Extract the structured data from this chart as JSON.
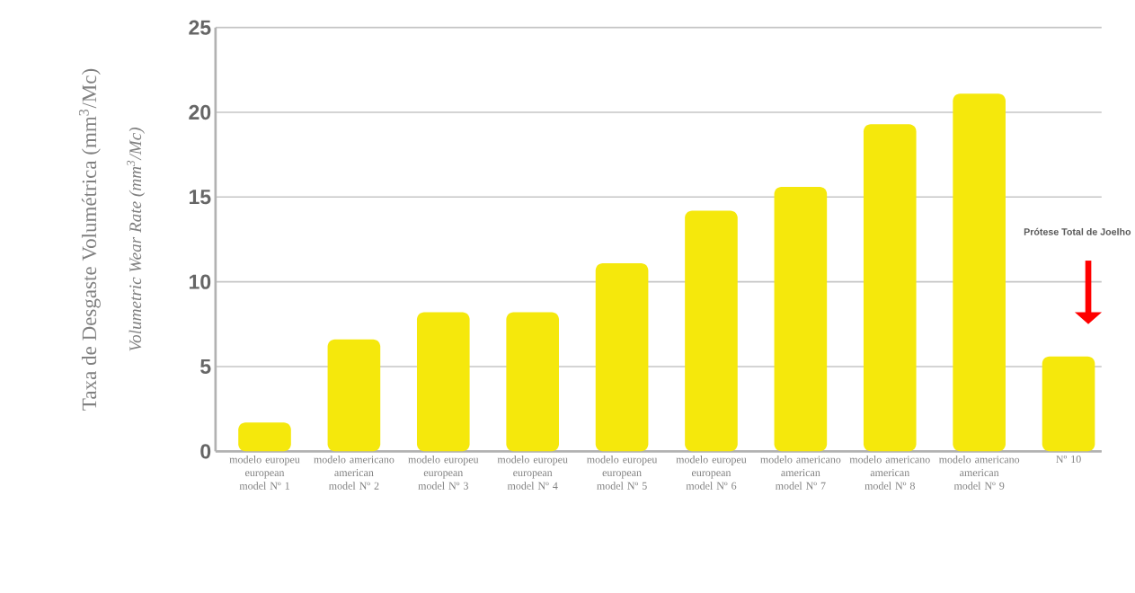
{
  "chart_data": {
    "type": "bar",
    "ylabel": "Taxa de Desgaste Volumétrica (mm$^{3}$/Mc)",
    "categories": [
      "modelo europeu european model Nº 1",
      "modelo americano american model Nº 2",
      "modelo europeu european model Nº 3",
      "modelo europeu european model Nº 4",
      "modelo europeu european model Nº 5",
      "modelo europeu european model Nº 6",
      "modelo americano american model Nº 7",
      "modelo americano american model Nº 8",
      "modelo americano american model Nº 9",
      "Nº 10"
    ],
    "values": [
      1.7,
      6.6,
      8.2,
      8.2,
      11.1,
      14.2,
      15.6,
      19.3,
      21.1,
      5.6
    ],
    "color": "#f5e80c",
    "ylim": [
      0,
      25
    ],
    "yticks": [
      0,
      5,
      10,
      15,
      20,
      25
    ],
    "grid": "y",
    "annotations": [
      "Volumetric Wear Rate (mm$^{3}$/Mc)",
      "Prótese Total de Joelho"
    ]
  }
}
